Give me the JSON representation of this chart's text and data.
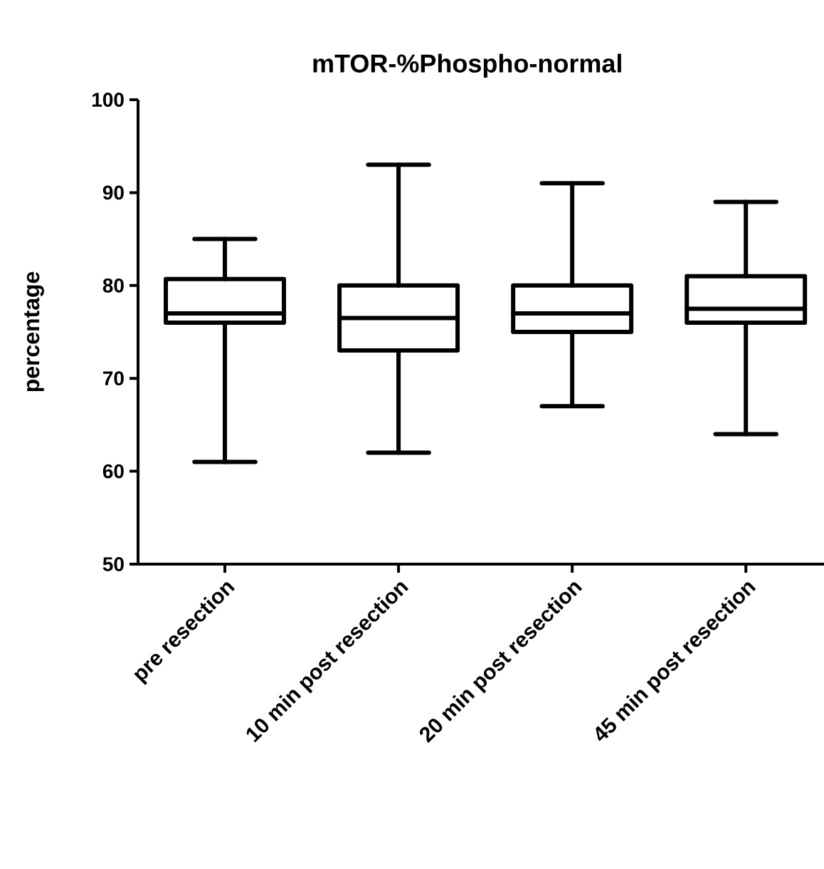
{
  "chart_data": {
    "type": "box",
    "title": "mTOR-%Phospho-normal",
    "ylabel": "percentage",
    "categories": [
      "pre resection",
      "10 min post resection",
      "20 min post resection",
      "45 min post resection"
    ],
    "boxes": [
      {
        "low": 61,
        "q1": 76,
        "median": 77,
        "q3": 80.7,
        "high": 85
      },
      {
        "low": 62,
        "q1": 73,
        "median": 76.5,
        "q3": 80,
        "high": 93
      },
      {
        "low": 67,
        "q1": 75,
        "median": 77,
        "q3": 80,
        "high": 91
      },
      {
        "low": 64,
        "q1": 76,
        "median": 77.5,
        "q3": 81,
        "high": 89
      }
    ],
    "color": "#000000",
    "ylim": [
      50,
      100
    ],
    "yticks": [
      50,
      60,
      70,
      80,
      90,
      100
    ]
  }
}
